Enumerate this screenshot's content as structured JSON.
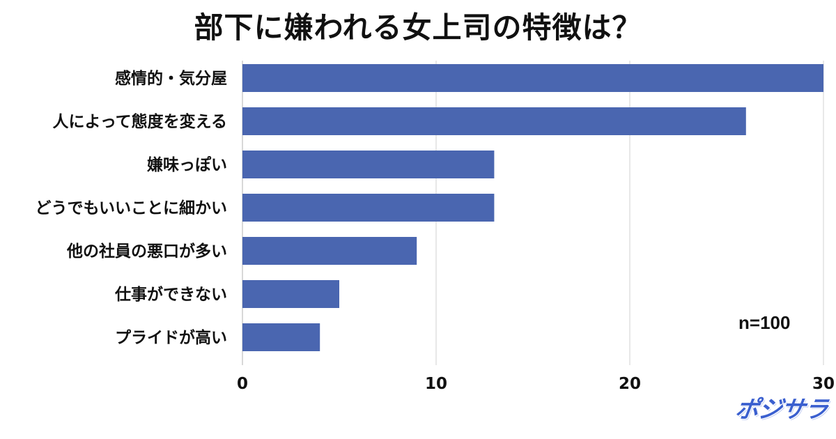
{
  "chart_data": {
    "type": "bar",
    "orientation": "horizontal",
    "title": "部下に嫌われる女上司の特徴は？",
    "categories": [
      "感情的・気分屋",
      "人によって態度を変える",
      "嫌味っぽい",
      "どうでもいいことに細かい",
      "他の社員の悪口が多い",
      "仕事ができない",
      "プライドが高い"
    ],
    "values": [
      30,
      26,
      13,
      13,
      9,
      5,
      4
    ],
    "xlim": [
      0,
      30
    ],
    "xticks": [
      0,
      10,
      20,
      30
    ],
    "grid": true,
    "bar_color": "#4a66b0",
    "annotation": "n=100"
  },
  "logo_text": "ポジサラ",
  "logo_color": "#3a5fcf"
}
